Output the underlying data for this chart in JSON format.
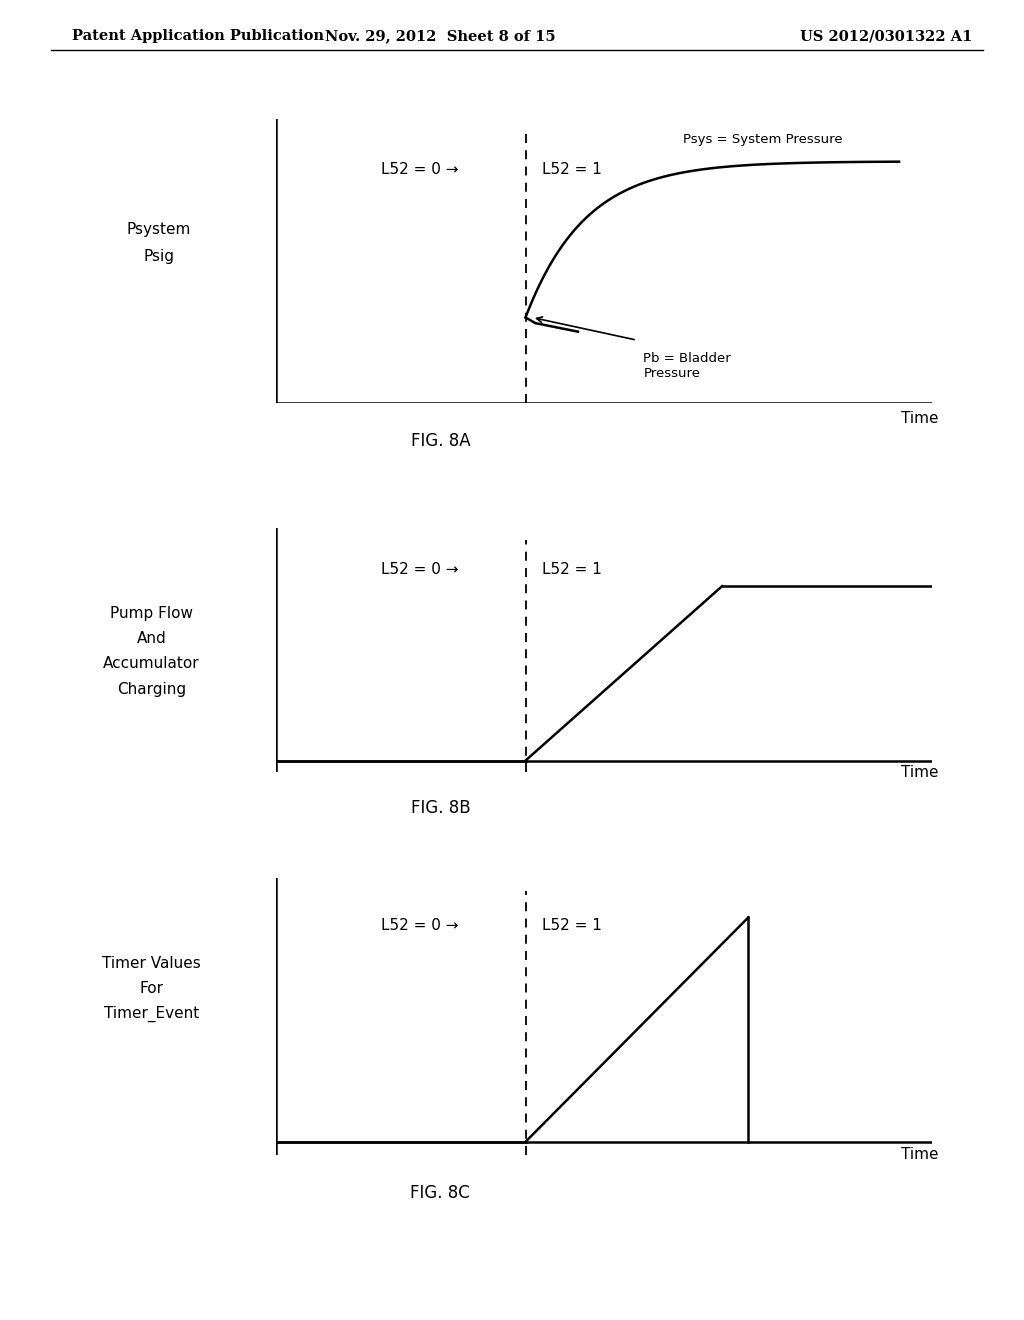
{
  "background_color": "#ffffff",
  "header_left": "Patent Application Publication",
  "header_center": "Nov. 29, 2012  Sheet 8 of 15",
  "header_right": "US 2012/0301322 A1",
  "header_fontsize": 10.5,
  "fig8a": {
    "ylabel_line1": "Psystem",
    "ylabel_line2": "Psig",
    "xlabel": "Time",
    "label_l52_0": "L52 = 0 →",
    "label_l52_1": "L52 = 1",
    "annotation_psys": "Psys = System Pressure",
    "annotation_pb": "Pb = Bladder\nPressure",
    "caption": "FIG. 8A"
  },
  "fig8b": {
    "ylabel_line1": "Pump Flow",
    "ylabel_line2": "And",
    "ylabel_line3": "Accumulator",
    "ylabel_line4": "Charging",
    "xlabel": "Time",
    "label_l52_0": "L52 = 0 →",
    "label_l52_1": "L52 = 1",
    "caption": "FIG. 8B"
  },
  "fig8c": {
    "ylabel_line1": "Timer Values",
    "ylabel_line2": "For",
    "ylabel_line3": "Timer_Event",
    "xlabel": "Time",
    "label_l52_0": "L52 = 0 →",
    "label_l52_1": "L52 = 1",
    "caption": "FIG. 8C"
  },
  "line_color": "#000000",
  "line_width": 1.8,
  "dashed_line_color": "#000000",
  "font_color": "#000000",
  "axis_font_size": 11,
  "label_font_size": 11,
  "caption_font_size": 12
}
